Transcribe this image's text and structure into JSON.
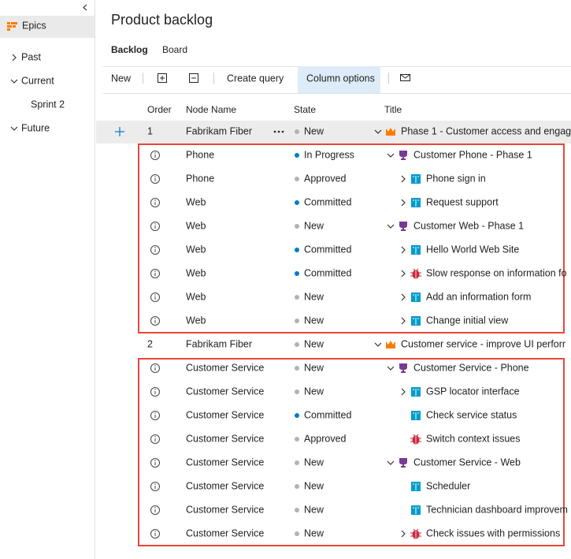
{
  "sidebar": {
    "items": [
      "Epics",
      "Past",
      "Current",
      "Sprint 2",
      "Future"
    ]
  },
  "header": {
    "title": "Product backlog",
    "tabs": [
      "Backlog",
      "Board"
    ]
  },
  "toolbar": {
    "items": [
      "New",
      "Create query",
      "Column options"
    ]
  },
  "state_colors": {
    "New": "#b2b2b2",
    "In Progress": "#007acc",
    "Approved": "#b2b2b2",
    "Committed": "#007acc"
  },
  "table": {
    "columns": [
      "Order",
      "Node Name",
      "State",
      "Title"
    ],
    "rows": [
      {
        "order": 1,
        "node_name": "Fabrikam Fiber",
        "state": "New",
        "title": "Phase 1 - Customer access and engag"
      },
      {
        "node_name": "Phone",
        "state": "In Progress",
        "title": "Customer Phone - Phase 1"
      },
      {
        "node_name": "Phone",
        "state": "Approved",
        "title": "Phone sign in"
      },
      {
        "node_name": "Web",
        "state": "Committed",
        "title": "Request support"
      },
      {
        "node_name": "Web",
        "state": "New",
        "title": "Customer Web - Phase 1"
      },
      {
        "node_name": "Web",
        "state": "Committed",
        "title": "Hello World Web Site"
      },
      {
        "node_name": "Web",
        "state": "Committed",
        "title": "Slow response on information fo"
      },
      {
        "node_name": "Web",
        "state": "New",
        "title": "Add an information form"
      },
      {
        "node_name": "Web",
        "state": "New",
        "title": "Change initial view"
      },
      {
        "order": 2,
        "node_name": "Fabrikam Fiber",
        "state": "New",
        "title": "Customer service - improve UI perforr"
      },
      {
        "node_name": "Customer Service",
        "state": "New",
        "title": "Customer Service - Phone"
      },
      {
        "node_name": "Customer Service",
        "state": "New",
        "title": "GSP locator interface"
      },
      {
        "node_name": "Customer Service",
        "state": "Committed",
        "title": "Check service status"
      },
      {
        "node_name": "Customer Service",
        "state": "Approved",
        "title": "Switch context issues"
      },
      {
        "node_name": "Customer Service",
        "state": "New",
        "title": "Customer Service - Web"
      },
      {
        "node_name": "Customer Service",
        "state": "New",
        "title": "Scheduler"
      },
      {
        "node_name": "Customer Service",
        "state": "New",
        "title": "Technician dashboard improvem"
      },
      {
        "node_name": "Customer Service",
        "state": "New",
        "title": "Check issues with permissions"
      }
    ]
  }
}
